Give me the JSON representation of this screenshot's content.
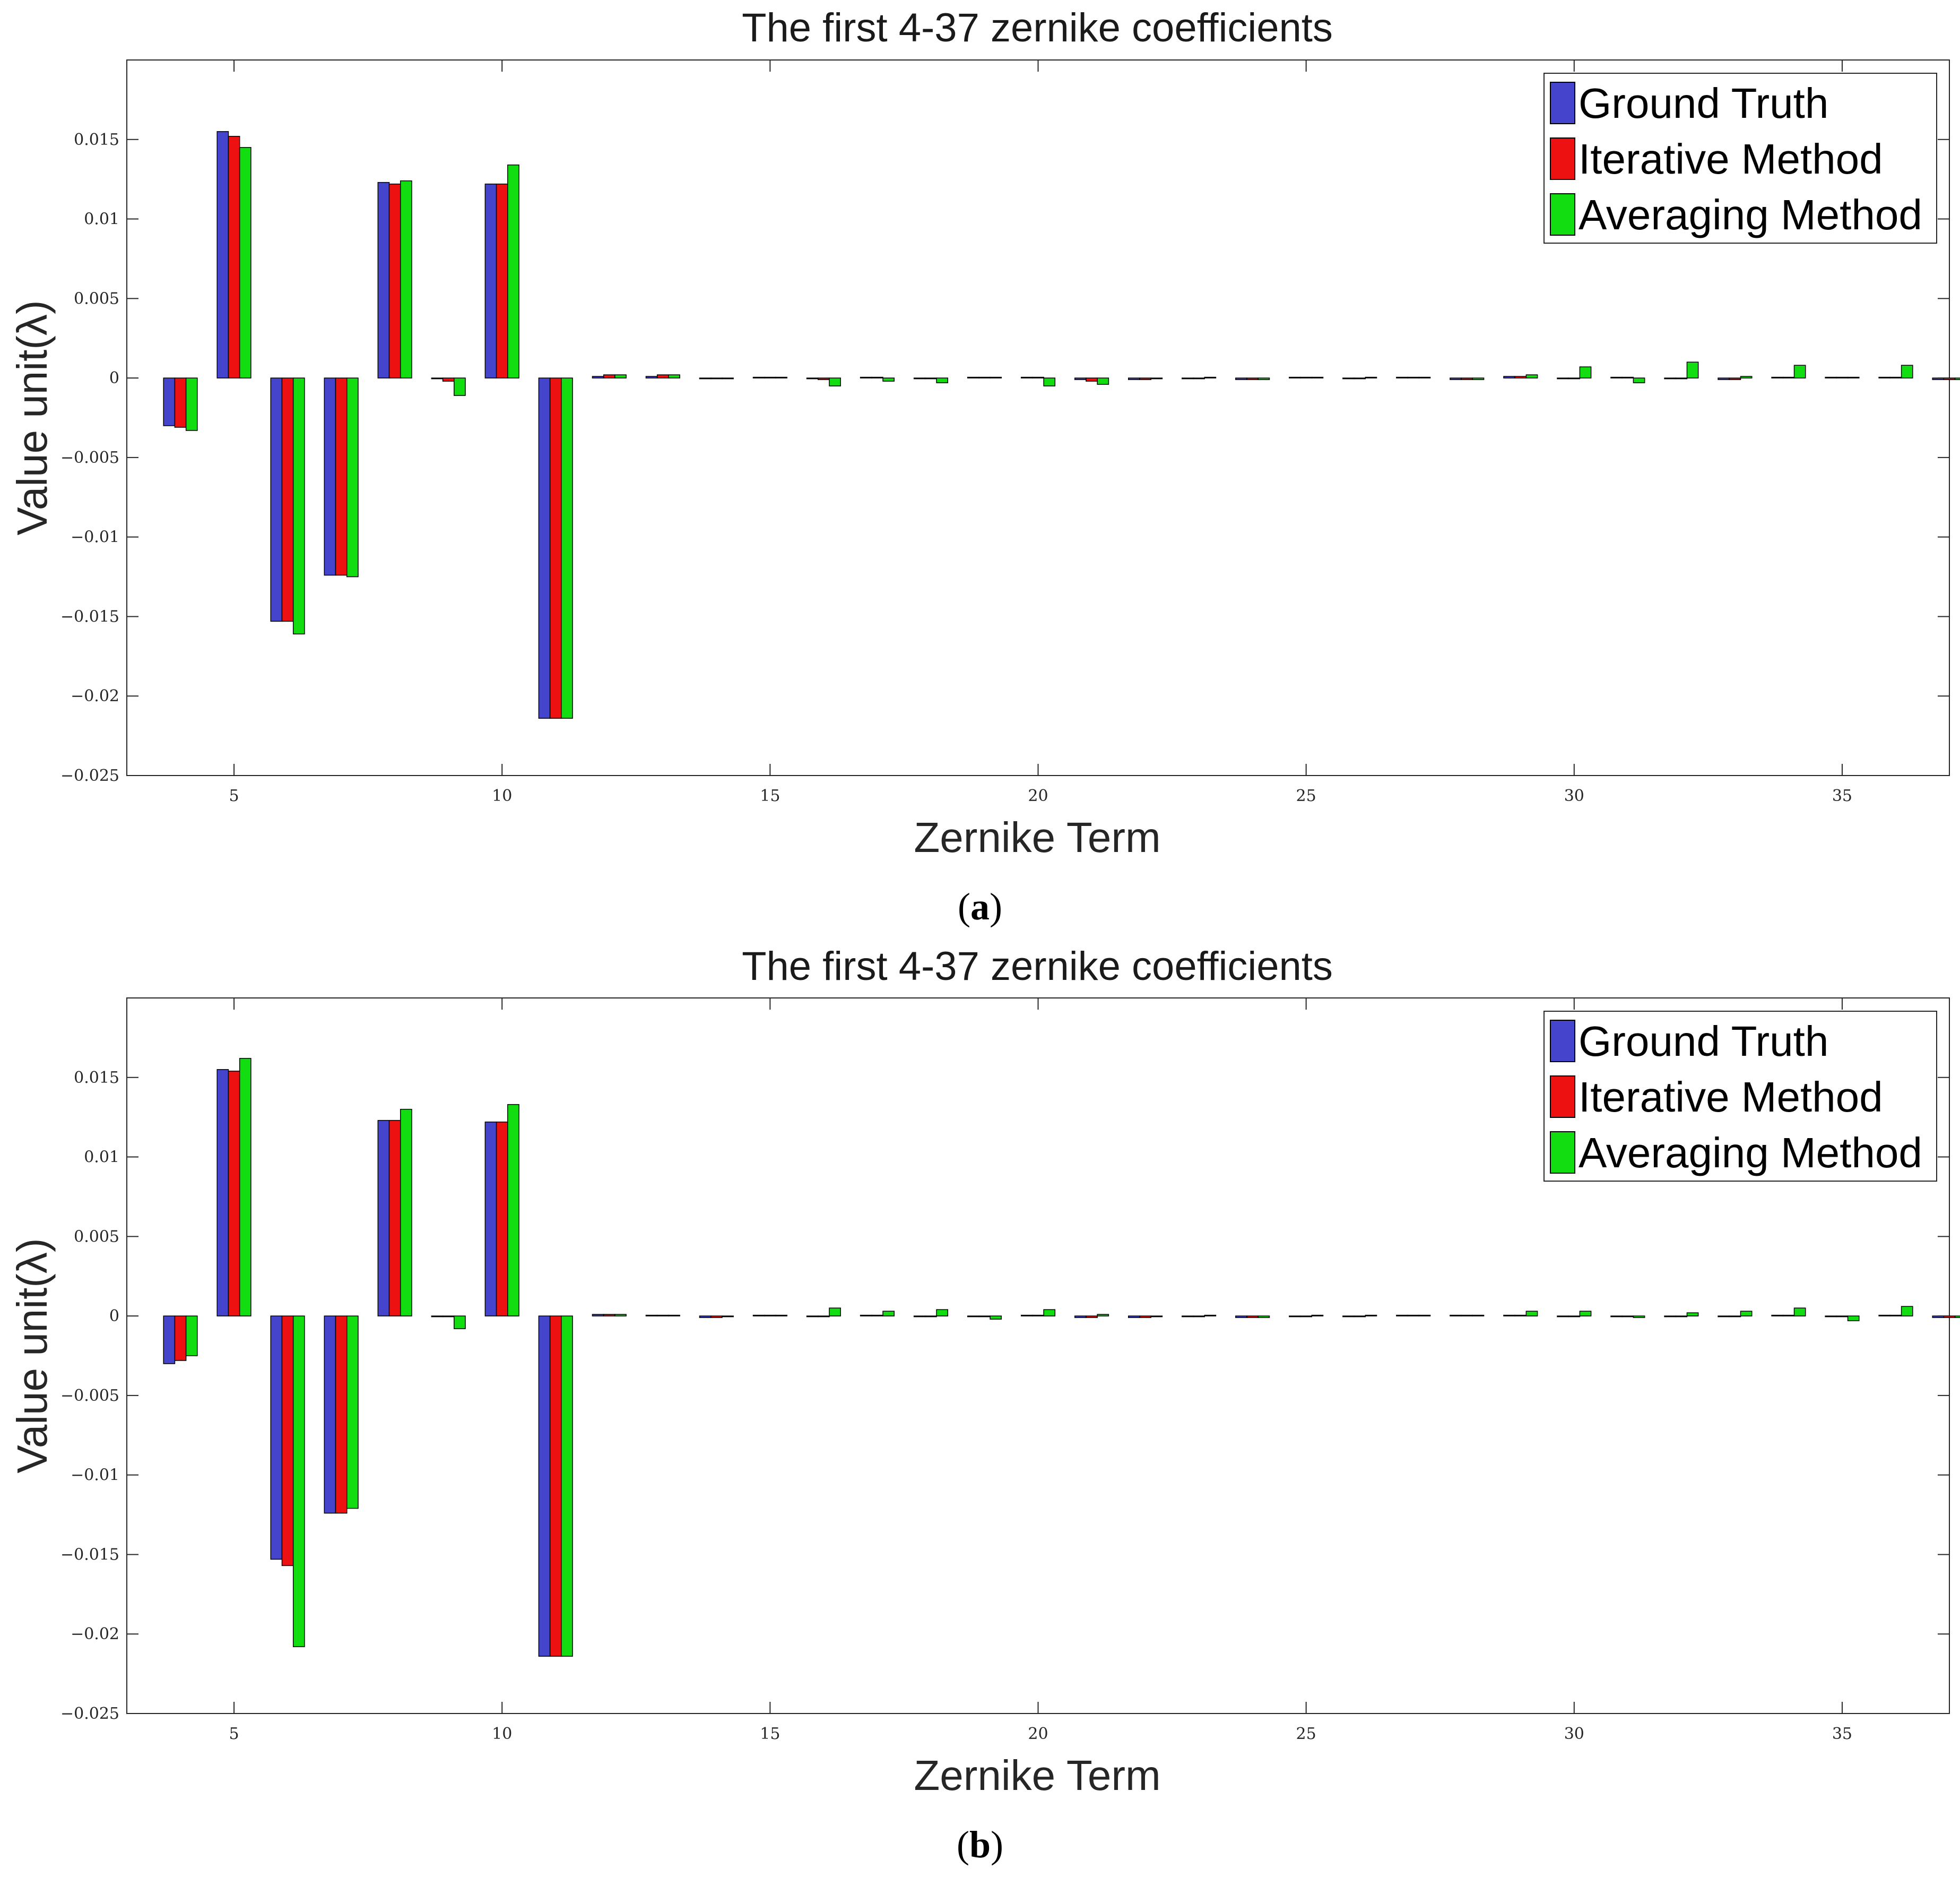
{
  "colors": {
    "ground_truth": "#4444cc",
    "iterative": "#ee1111",
    "averaging": "#11dd11",
    "axes": "#262626"
  },
  "chart_data": [
    {
      "type": "bar",
      "panel_label": "a",
      "title": "The first 4-37 zernike coefficients",
      "xlabel": "Zernike Term",
      "ylabel": "Value unit(λ)",
      "xlim": [
        3,
        37
      ],
      "ylim": [
        -0.025,
        0.02
      ],
      "xticks": [
        5,
        10,
        15,
        20,
        25,
        30,
        35
      ],
      "xtick_labels": [
        "5",
        "10",
        "15",
        "20",
        "25",
        "30",
        "35"
      ],
      "yticks": [
        -0.025,
        -0.02,
        -0.015,
        -0.01,
        -0.005,
        0,
        0.005,
        0.01,
        0.015
      ],
      "ytick_labels": [
        "−0.025",
        "−0.02",
        "−0.015",
        "−0.01",
        "−0.005",
        "0",
        "0.005",
        "0.01",
        "0.015"
      ],
      "legend_position": "top-right",
      "categories": [
        4,
        5,
        6,
        7,
        8,
        9,
        10,
        11,
        12,
        13,
        14,
        15,
        16,
        17,
        18,
        19,
        20,
        21,
        22,
        23,
        24,
        25,
        26,
        27,
        28,
        29,
        30,
        31,
        32,
        33,
        34,
        35,
        36,
        37
      ],
      "series": [
        {
          "name": "Ground Truth",
          "values": [
            -0.003,
            0.0155,
            -0.0153,
            -0.0124,
            0.0123,
            -5e-05,
            0.0122,
            -0.0214,
            0.0001,
            0.0001,
            -5e-05,
            5e-05,
            -5e-05,
            5e-05,
            -5e-05,
            5e-05,
            5e-05,
            -0.0001,
            -0.0001,
            -5e-05,
            -0.0001,
            5e-05,
            -5e-05,
            5e-05,
            -0.0001,
            0.0001,
            -5e-05,
            5e-05,
            -5e-05,
            -0.0001,
            5e-05,
            5e-05,
            5e-05,
            -0.0001
          ]
        },
        {
          "name": "Iterative Method",
          "values": [
            -0.0031,
            0.0152,
            -0.0153,
            -0.0124,
            0.0122,
            -0.0002,
            0.0122,
            -0.0214,
            0.0002,
            0.0002,
            -5e-05,
            5e-05,
            -0.0001,
            5e-05,
            -5e-05,
            5e-05,
            5e-05,
            -0.0002,
            -0.0001,
            -5e-05,
            -0.0001,
            5e-05,
            -5e-05,
            5e-05,
            -0.0001,
            0.0001,
            -5e-05,
            5e-05,
            -5e-05,
            -0.0001,
            5e-05,
            5e-05,
            5e-05,
            -0.0001
          ]
        },
        {
          "name": "Averaging Method",
          "values": [
            -0.0033,
            0.0145,
            -0.0161,
            -0.0125,
            0.0124,
            -0.0011,
            0.0134,
            -0.0214,
            0.0002,
            0.0002,
            -5e-05,
            5e-05,
            -0.0005,
            -0.0002,
            -0.0003,
            5e-05,
            -0.0005,
            -0.0004,
            -5e-05,
            5e-05,
            -0.0001,
            5e-05,
            5e-05,
            5e-05,
            -0.0001,
            0.0002,
            0.0007,
            -0.0003,
            0.001,
            0.0001,
            0.0008,
            5e-05,
            0.0008,
            -0.0001
          ]
        }
      ]
    },
    {
      "type": "bar",
      "panel_label": "b",
      "title": "The first 4-37 zernike coefficients",
      "xlabel": "Zernike Term",
      "ylabel": "Value unit(λ)",
      "xlim": [
        3,
        37
      ],
      "ylim": [
        -0.025,
        0.02
      ],
      "xticks": [
        5,
        10,
        15,
        20,
        25,
        30,
        35
      ],
      "xtick_labels": [
        "5",
        "10",
        "15",
        "20",
        "25",
        "30",
        "35"
      ],
      "yticks": [
        -0.025,
        -0.02,
        -0.015,
        -0.01,
        -0.005,
        0,
        0.005,
        0.01,
        0.015
      ],
      "ytick_labels": [
        "−0.025",
        "−0.02",
        "−0.015",
        "−0.01",
        "−0.005",
        "0",
        "0.005",
        "0.01",
        "0.015"
      ],
      "legend_position": "top-right",
      "categories": [
        4,
        5,
        6,
        7,
        8,
        9,
        10,
        11,
        12,
        13,
        14,
        15,
        16,
        17,
        18,
        19,
        20,
        21,
        22,
        23,
        24,
        25,
        26,
        27,
        28,
        29,
        30,
        31,
        32,
        33,
        34,
        35,
        36,
        37
      ],
      "series": [
        {
          "name": "Ground Truth",
          "values": [
            -0.003,
            0.0155,
            -0.0153,
            -0.0124,
            0.0123,
            -5e-05,
            0.0122,
            -0.0214,
            0.0001,
            5e-05,
            -0.0001,
            5e-05,
            -5e-05,
            5e-05,
            -5e-05,
            -5e-05,
            5e-05,
            -0.0001,
            -0.0001,
            -5e-05,
            -0.0001,
            -5e-05,
            -5e-05,
            5e-05,
            5e-05,
            5e-05,
            -5e-05,
            -5e-05,
            -5e-05,
            -5e-05,
            5e-05,
            -5e-05,
            5e-05,
            -0.0001
          ]
        },
        {
          "name": "Iterative Method",
          "values": [
            -0.0028,
            0.0154,
            -0.0157,
            -0.0124,
            0.0123,
            -5e-05,
            0.0122,
            -0.0214,
            0.0001,
            5e-05,
            -0.0001,
            5e-05,
            -5e-05,
            5e-05,
            -5e-05,
            -5e-05,
            5e-05,
            -0.0001,
            -0.0001,
            -5e-05,
            -0.0001,
            -5e-05,
            -5e-05,
            5e-05,
            5e-05,
            5e-05,
            -5e-05,
            -5e-05,
            -5e-05,
            -5e-05,
            5e-05,
            -5e-05,
            5e-05,
            -0.0001
          ]
        },
        {
          "name": "Averaging Method",
          "values": [
            -0.0025,
            0.0162,
            -0.0208,
            -0.0121,
            0.013,
            -0.0008,
            0.0133,
            -0.0214,
            0.0001,
            5e-05,
            -5e-05,
            5e-05,
            0.0005,
            0.0003,
            0.0004,
            -0.0002,
            0.0004,
            0.0001,
            -5e-05,
            5e-05,
            -0.0001,
            5e-05,
            5e-05,
            5e-05,
            5e-05,
            0.0003,
            0.0003,
            -0.0001,
            0.0002,
            0.0003,
            0.0005,
            -0.0003,
            0.0006,
            -0.0001
          ]
        }
      ]
    }
  ]
}
